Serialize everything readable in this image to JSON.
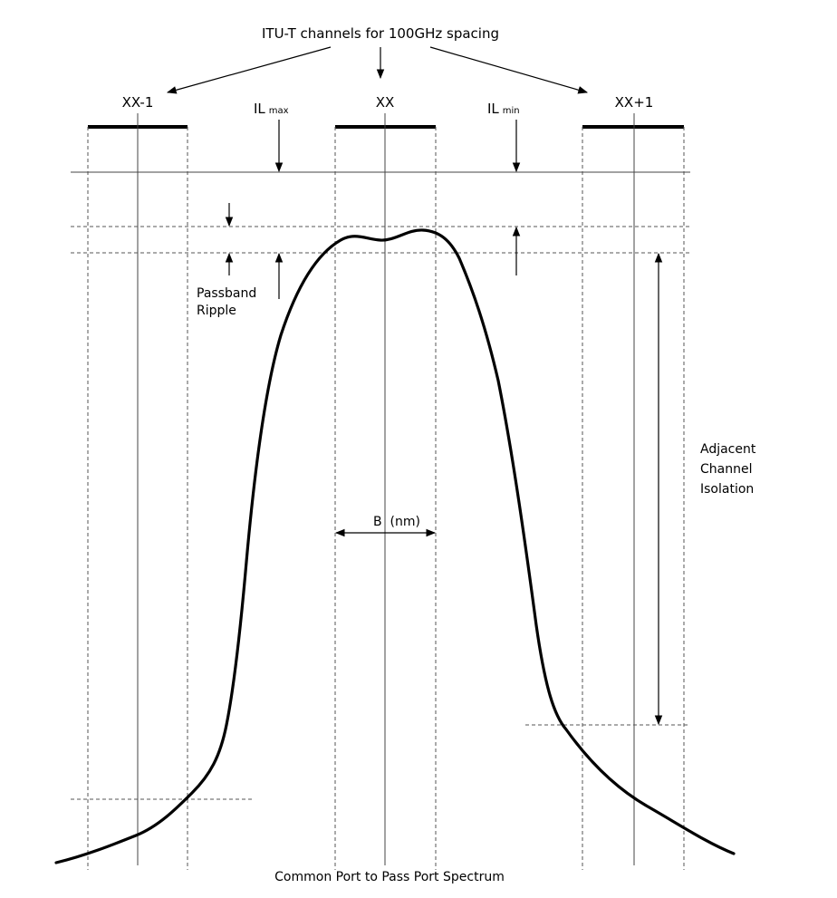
{
  "title": "ITU-T channels for 100GHz spacing",
  "caption": "Common Port to Pass Port Spectrum",
  "channels": [
    "XX-1",
    "XX",
    "XX+1"
  ],
  "il_max": {
    "main": "IL",
    "sub": "max"
  },
  "il_min": {
    "main": "IL",
    "sub": "min"
  },
  "passband_ripple": [
    "Passband",
    "Ripple"
  ],
  "adjacent_isolation": [
    "Adjacent",
    "Channel",
    "Isolation"
  ],
  "bandwidth_label": "B  (nm)"
}
